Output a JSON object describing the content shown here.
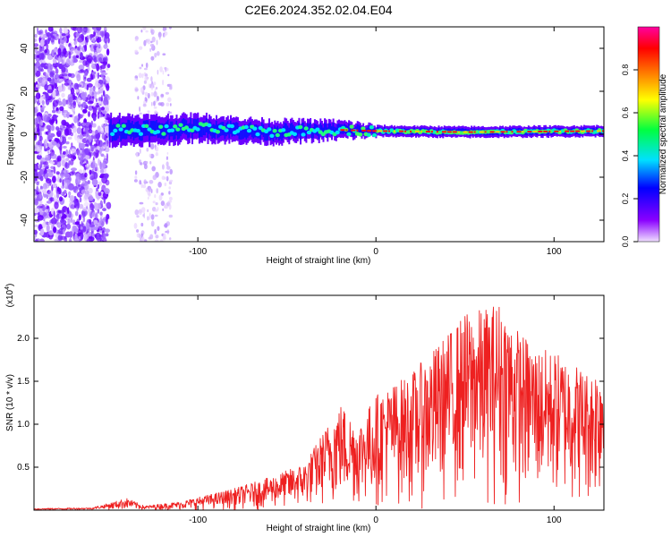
{
  "figure": {
    "title": "C2E6.2024.352.02.04.E04"
  },
  "chart_data": [
    {
      "type": "heatmap",
      "xlabel": "Height of straight line (km)",
      "ylabel": "Frequency (Hz)",
      "xlim": [
        -192,
        128
      ],
      "ylim": [
        -50,
        50
      ],
      "xticks": [
        -100,
        0,
        100
      ],
      "yticks": [
        -40,
        -20,
        0,
        20,
        40
      ],
      "colorbar": {
        "label": "Normalized spectral amplitude",
        "range": [
          0.0,
          1.0
        ],
        "ticks": [
          "0.0",
          "0.2",
          "0.4",
          "0.6",
          "0.8"
        ],
        "colors": [
          "#f0e0ff",
          "#7b00ff",
          "#0000ff",
          "#00e0ff",
          "#00ff40",
          "#ffff00",
          "#ff8000",
          "#ff0000",
          "#ff00a0"
        ]
      },
      "noise_region_x": [
        -192,
        -150
      ],
      "secondary_noise_x": [
        -135,
        -115
      ],
      "band": {
        "center_hz": [
          [
            -150,
            2
          ],
          [
            -120,
            2
          ],
          [
            -100,
            3
          ],
          [
            -60,
            1
          ],
          [
            -20,
            2
          ],
          [
            0,
            1.5
          ],
          [
            50,
            1
          ],
          [
            128,
            1.5
          ]
        ],
        "half_width_hz": [
          [
            -150,
            7
          ],
          [
            -100,
            6
          ],
          [
            -50,
            5
          ],
          [
            -20,
            4
          ],
          [
            0,
            2.5
          ],
          [
            128,
            2.5
          ]
        ],
        "peak_color_from_x": -20
      }
    },
    {
      "type": "line",
      "xlabel": "Height of straight line (km)",
      "ylabel": "SNR (10 * v/v)",
      "y_multiplier": "(x10",
      "y_multiplier_exp": "4",
      "y_multiplier_close": ")",
      "xlim": [
        -192,
        128
      ],
      "ylim": [
        0,
        2.5
      ],
      "xticks": [
        -100,
        0,
        100
      ],
      "yticks": [
        "0.5",
        "1.0",
        "1.5",
        "2.0"
      ],
      "color": "#ee2020",
      "envelope": {
        "x": [
          -192,
          -160,
          -150,
          -140,
          -130,
          -110,
          -100,
          -80,
          -60,
          -40,
          -20,
          -10,
          0,
          20,
          40,
          50,
          60,
          70,
          80,
          90,
          100,
          110,
          120,
          128
        ],
        "y": [
          0.02,
          0.03,
          0.08,
          0.14,
          0.05,
          0.1,
          0.15,
          0.25,
          0.38,
          0.55,
          1.25,
          1.0,
          1.35,
          1.6,
          2.05,
          2.3,
          2.35,
          2.45,
          2.1,
          1.9,
          1.85,
          1.75,
          1.6,
          1.8
        ]
      }
    }
  ]
}
